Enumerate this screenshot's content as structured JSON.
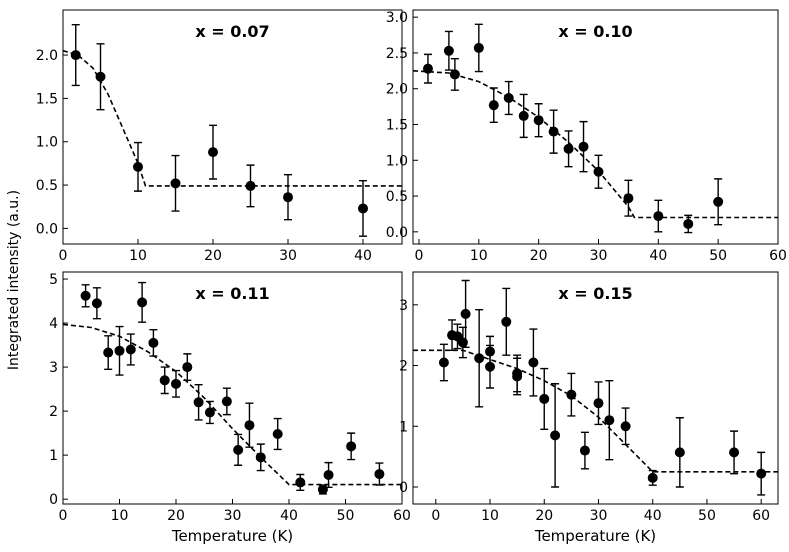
{
  "ylabel": "Integrated intensity (a.u.)",
  "chart_data": [
    {
      "type": "scatter",
      "title": "x = 0.07",
      "xlim": [
        0,
        45.2
      ],
      "ylim": [
        -0.18,
        2.52
      ],
      "xticks": [
        0,
        10,
        20,
        30,
        40
      ],
      "yticks": [
        {
          "value": 0,
          "label": "0.0"
        },
        0.5,
        {
          "value": 1,
          "label": "1.0"
        },
        1.5,
        {
          "value": 2,
          "label": "2.0"
        }
      ],
      "series": [
        {
          "color": "#000000",
          "x": [
            1.7,
            5,
            10,
            15,
            20,
            25,
            30,
            40
          ],
          "values": [
            2.0,
            1.75,
            0.71,
            0.52,
            0.88,
            0.49,
            0.36,
            0.23
          ],
          "errors": [
            0.35,
            0.38,
            0.28,
            0.32,
            0.31,
            0.24,
            0.26,
            0.32
          ]
        }
      ],
      "fit": {
        "x": [
          0,
          2,
          4,
          6,
          8,
          10,
          11,
          45.2
        ],
        "values": [
          2.05,
          2.0,
          1.85,
          1.55,
          1.15,
          0.75,
          0.49,
          0.49
        ]
      }
    },
    {
      "type": "scatter",
      "title": "x = 0.10",
      "xlim": [
        -1,
        60
      ],
      "ylim": [
        -0.17,
        3.1
      ],
      "xticks": [
        0,
        10,
        20,
        30,
        40,
        50,
        60
      ],
      "yticks": [
        {
          "value": 0,
          "label": "0.0"
        },
        0.5,
        {
          "value": 1,
          "label": "1.0"
        },
        1.5,
        {
          "value": 2,
          "label": "2.0"
        },
        2.5,
        {
          "value": 3,
          "label": "3.0"
        }
      ],
      "series": [
        {
          "color": "#000000",
          "x": [
            1.5,
            5,
            6,
            10,
            12.5,
            15,
            17.5,
            20,
            22.5,
            25,
            27.5,
            30,
            35,
            40,
            45,
            50
          ],
          "values": [
            2.28,
            2.53,
            2.2,
            2.57,
            1.77,
            1.87,
            1.62,
            1.56,
            1.4,
            1.16,
            1.19,
            0.84,
            0.47,
            0.22,
            0.11,
            0.42
          ],
          "errors": [
            0.2,
            0.27,
            0.22,
            0.33,
            0.24,
            0.23,
            0.3,
            0.23,
            0.3,
            0.25,
            0.35,
            0.23,
            0.25,
            0.22,
            0.12,
            0.32
          ]
        }
      ],
      "fit": {
        "x": [
          -1,
          5,
          10,
          15,
          20,
          25,
          30,
          35,
          36,
          60
        ],
        "values": [
          2.25,
          2.22,
          2.1,
          1.88,
          1.6,
          1.25,
          0.85,
          0.35,
          0.2,
          0.2
        ]
      }
    },
    {
      "type": "scatter",
      "title": "x = 0.11",
      "xlabel": "Temperature (K)",
      "xlim": [
        0,
        60
      ],
      "ylim": [
        -0.11,
        5.16
      ],
      "xticks": [
        0,
        10,
        20,
        30,
        40,
        50,
        60
      ],
      "yticks": [
        0,
        1,
        2,
        3,
        4,
        5
      ],
      "series": [
        {
          "color": "#000000",
          "x": [
            4,
            6,
            8,
            10,
            12,
            14,
            16,
            18,
            20,
            22,
            24,
            26,
            29,
            31,
            33,
            35,
            38,
            42,
            46,
            47,
            51,
            56
          ],
          "values": [
            4.62,
            4.45,
            3.33,
            3.37,
            3.4,
            4.47,
            3.55,
            2.7,
            2.62,
            3.0,
            2.2,
            1.97,
            2.22,
            1.12,
            1.68,
            0.95,
            1.48,
            0.38,
            0.22,
            0.55,
            1.2,
            0.57
          ],
          "errors": [
            0.25,
            0.35,
            0.38,
            0.55,
            0.35,
            0.45,
            0.3,
            0.3,
            0.3,
            0.3,
            0.4,
            0.25,
            0.3,
            0.35,
            0.5,
            0.3,
            0.35,
            0.18,
            0.1,
            0.28,
            0.3,
            0.25
          ]
        }
      ],
      "fit": {
        "x": [
          0,
          5,
          10,
          15,
          20,
          25,
          30,
          35,
          40,
          60
        ],
        "values": [
          3.97,
          3.9,
          3.7,
          3.35,
          2.9,
          2.3,
          1.6,
          0.95,
          0.33,
          0.33
        ]
      }
    },
    {
      "type": "scatter",
      "title": "x = 0.15",
      "xlabel": "Temperature (K)",
      "xlim": [
        -4.2,
        63.1
      ],
      "ylim": [
        -0.28,
        3.54
      ],
      "xticks": [
        0,
        10,
        20,
        30,
        40,
        50,
        60
      ],
      "yticks": [
        0,
        1,
        2,
        3
      ],
      "series": [
        {
          "color": "#000000",
          "x": [
            1.5,
            3,
            4,
            5,
            5.5,
            8,
            10,
            10,
            13,
            15,
            15,
            18,
            20,
            22,
            25,
            27.5,
            30,
            32,
            35,
            40,
            45,
            55,
            60
          ],
          "values": [
            2.05,
            2.5,
            2.48,
            2.38,
            2.85,
            2.12,
            2.23,
            1.98,
            2.72,
            1.82,
            1.87,
            2.05,
            1.45,
            0.85,
            1.52,
            0.6,
            1.38,
            1.1,
            1.0,
            0.15,
            0.57,
            0.57,
            0.22
          ],
          "errors": [
            0.3,
            0.25,
            0.2,
            0.25,
            0.55,
            0.8,
            0.25,
            0.35,
            0.55,
            0.3,
            0.3,
            0.55,
            0.5,
            0.85,
            0.35,
            0.3,
            0.35,
            0.65,
            0.3,
            0.12,
            0.57,
            0.35,
            0.35
          ]
        }
      ],
      "fit": {
        "x": [
          -4.2,
          0,
          5,
          10,
          15,
          20,
          25,
          30,
          35,
          40,
          63.1
        ],
        "values": [
          2.25,
          2.25,
          2.25,
          2.1,
          1.95,
          1.75,
          1.5,
          1.15,
          0.7,
          0.25,
          0.25
        ]
      }
    }
  ]
}
